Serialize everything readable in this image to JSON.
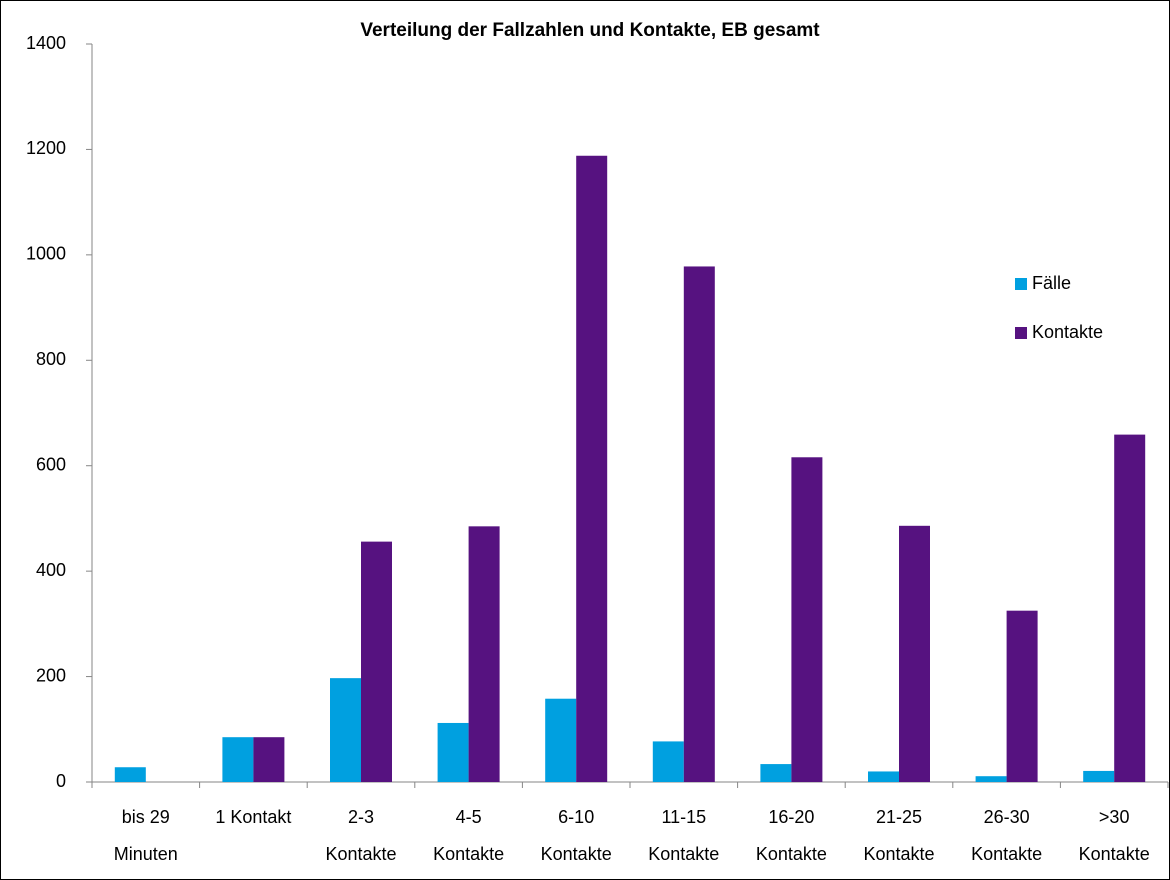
{
  "chart_data": {
    "type": "bar",
    "title": "Verteilung der Fallzahlen und Kontakte, EB gesamt",
    "categories": [
      [
        "bis 29",
        "Minuten"
      ],
      [
        "1 Kontakt"
      ],
      [
        "2-3",
        "Kontakte"
      ],
      [
        "4-5",
        "Kontakte"
      ],
      [
        "6-10",
        "Kontakte"
      ],
      [
        "11-15",
        "Kontakte"
      ],
      [
        "16-20",
        "Kontakte"
      ],
      [
        "21-25",
        "Kontakte"
      ],
      [
        "26-30",
        "Kontakte"
      ],
      [
        ">30",
        "Kontakte"
      ]
    ],
    "series": [
      {
        "name": "Fälle",
        "color": "#00a0e0",
        "values": [
          28,
          85,
          197,
          112,
          158,
          77,
          34,
          20,
          11,
          21
        ]
      },
      {
        "name": "Kontakte",
        "color": "#561280",
        "values": [
          0,
          85,
          456,
          485,
          1188,
          978,
          616,
          486,
          325,
          659
        ]
      }
    ],
    "ylim": [
      0,
      1400
    ],
    "yticks": [
      0,
      200,
      400,
      600,
      800,
      1000,
      1200,
      1400
    ],
    "grid": false,
    "legend": "right"
  }
}
